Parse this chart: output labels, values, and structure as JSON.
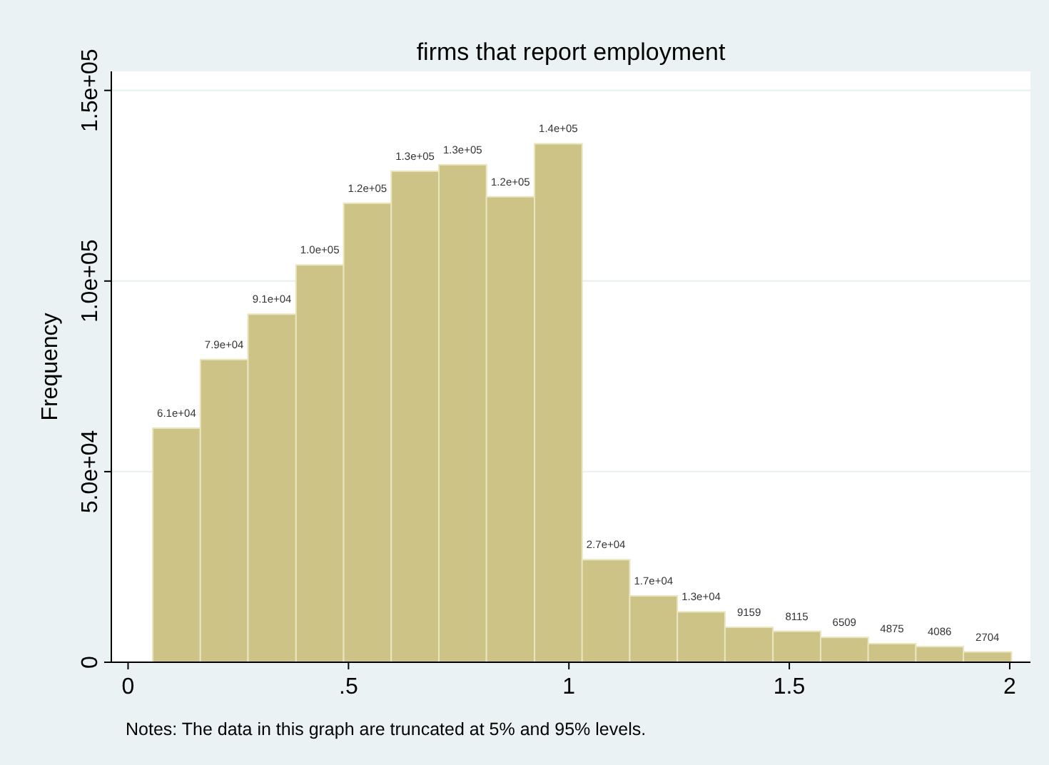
{
  "chart_data": {
    "type": "histogram",
    "title": "firms that report employment",
    "ylabel": "Frequency",
    "annotations": [
      "Notes: The data in this graph are truncated at 5% and 95% levels."
    ],
    "bins": [
      0.056,
      0.164,
      0.272,
      0.381,
      0.489,
      0.597,
      0.705,
      0.813,
      0.922,
      1.03,
      1.138,
      1.246,
      1.354,
      1.463,
      1.571,
      1.679,
      1.787,
      1.895,
      2.004
    ],
    "values": [
      61400,
      79400,
      91300,
      104200,
      120400,
      128800,
      130500,
      122100,
      136000,
      26900,
      17400,
      13200,
      9159,
      8115,
      6509,
      4875,
      4086,
      2704
    ],
    "value_labels": [
      "6.1e+04",
      "7.9e+04",
      "9.1e+04",
      "1.0e+05",
      "1.2e+05",
      "1.3e+05",
      "1.3e+05",
      "1.2e+05",
      "1.4e+05",
      "2.7e+04",
      "1.7e+04",
      "1.3e+04",
      "9159",
      "8115",
      "6509",
      "4875",
      "4086",
      "2704"
    ],
    "color": "#cdc386",
    "xlim": [
      -0.038,
      2.047
    ],
    "xticks": [
      0,
      {
        "value": 0.5,
        "label": ".5"
      },
      1,
      1.5,
      2
    ],
    "ylim": [
      0,
      155000
    ],
    "yticks": [
      {
        "value": 0,
        "label": "0"
      },
      {
        "value": 50000,
        "label": "5.0e+04"
      },
      {
        "value": 100000,
        "label": "1.0e+05"
      },
      {
        "value": 150000,
        "label": "1.5e+05"
      }
    ],
    "grid": "y"
  }
}
